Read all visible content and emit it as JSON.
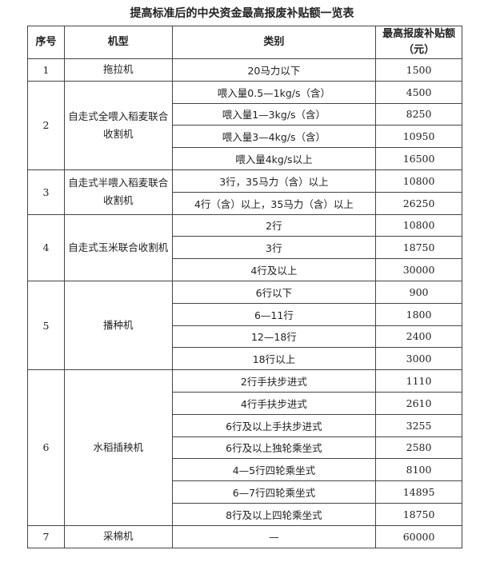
{
  "title": "提高标准后的中央资金最高报废补贴额一览表",
  "headers": [
    "序号",
    "机型",
    "类别",
    "最高报废补贴额（元）"
  ],
  "groups": [
    {
      "no": "1",
      "type": "拖拉机",
      "rows": [
        [
          "20马力以下",
          "1500"
        ]
      ]
    },
    {
      "no": "2",
      "type": "自走式全喂入稻麦联合收割机",
      "rows": [
        [
          "喂入量0.5—1kg/s（含）",
          "4500"
        ],
        [
          "喂入量1—3kg/s（含）",
          "8250"
        ],
        [
          "喂入量3—4kg/s（含）",
          "10950"
        ],
        [
          "喂入量4kg/s以上",
          "16500"
        ]
      ]
    },
    {
      "no": "3",
      "type": "自走式半喂入稻麦联合收割机",
      "rows": [
        [
          "3行，35马力（含）以上",
          "10800"
        ],
        [
          "4行（含）以上，35马力（含）以上",
          "26250"
        ]
      ]
    },
    {
      "no": "4",
      "type": "自走式玉米联合收割机",
      "rows": [
        [
          "2行",
          "10800"
        ],
        [
          "3行",
          "18750"
        ],
        [
          "4行及以上",
          "30000"
        ]
      ]
    },
    {
      "no": "5",
      "type": "播种机",
      "rows": [
        [
          "6行以下",
          "900"
        ],
        [
          "6—11行",
          "1800"
        ],
        [
          "12—18行",
          "2400"
        ],
        [
          "18行以上",
          "3000"
        ]
      ]
    },
    {
      "no": "6",
      "type": "水稻插秧机",
      "rows": [
        [
          "2行手扶步进式",
          "1110"
        ],
        [
          "4行手扶步进式",
          "2610"
        ],
        [
          "6行及以上手扶步进式",
          "3255"
        ],
        [
          "6行及以上独轮乘坐式",
          "2580"
        ],
        [
          "4—5行四轮乘坐式",
          "8100"
        ],
        [
          "6—7行四轮乘坐式",
          "14895"
        ],
        [
          "8行及以上四轮乘坐式",
          "18750"
        ]
      ]
    },
    {
      "no": "7",
      "type": "采棉机",
      "rows": [
        [
          "—",
          "60000"
        ]
      ]
    }
  ]
}
